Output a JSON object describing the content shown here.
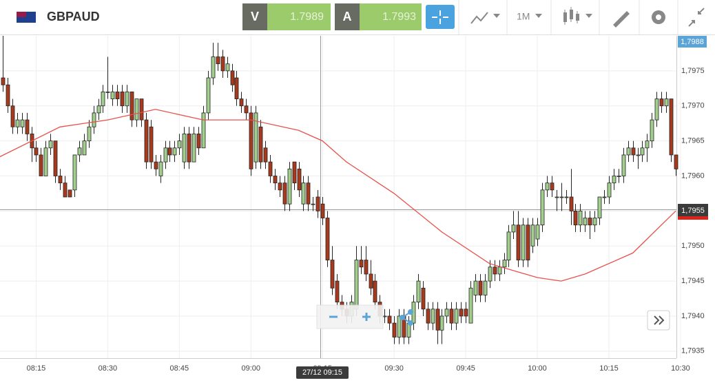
{
  "toolbar": {
    "symbol": "GBPAUD",
    "bid": {
      "label": "V",
      "price": "1.7989"
    },
    "ask": {
      "label": "A",
      "price": "1.7993"
    },
    "timeframe": "1M"
  },
  "chart_data": {
    "type": "candlestick",
    "price_badge": "1,7988",
    "crosshair_price": "1,7955",
    "crosshair_time": "27/12 09:15",
    "xlim": [
      "08:07",
      "10:29"
    ],
    "ylim": [
      1.7934,
      1.798
    ],
    "xticks": [
      "08:15",
      "08:30",
      "08:45",
      "09:00",
      "09:15",
      "09:30",
      "09:45",
      "10:00",
      "10:15",
      "10:30"
    ],
    "yticks": [
      {
        "value": 1.7935,
        "label": "1,7935"
      },
      {
        "value": 1.794,
        "label": "1,7940"
      },
      {
        "value": 1.7945,
        "label": "1,7945"
      },
      {
        "value": 1.795,
        "label": "1,7950"
      },
      {
        "value": 1.7955,
        "label": "1,7955"
      },
      {
        "value": 1.796,
        "label": "1,7960"
      },
      {
        "value": 1.7965,
        "label": "1,7965"
      },
      {
        "value": 1.797,
        "label": "1,7970"
      },
      {
        "value": 1.7975,
        "label": "1,7975"
      }
    ],
    "grid": true,
    "up_color": "#a3cf8e",
    "down_color": "#a8391c",
    "x": [
      "08:08",
      "08:09",
      "08:10",
      "08:11",
      "08:12",
      "08:13",
      "08:14",
      "08:15",
      "08:16",
      "08:17",
      "08:18",
      "08:19",
      "08:20",
      "08:21",
      "08:22",
      "08:23",
      "08:24",
      "08:25",
      "08:26",
      "08:27",
      "08:28",
      "08:29",
      "08:30",
      "08:31",
      "08:32",
      "08:33",
      "08:34",
      "08:35",
      "08:36",
      "08:37",
      "08:38",
      "08:39",
      "08:40",
      "08:41",
      "08:42",
      "08:43",
      "08:44",
      "08:45",
      "08:46",
      "08:47",
      "08:48",
      "08:49",
      "08:50",
      "08:51",
      "08:52",
      "08:53",
      "08:54",
      "08:55",
      "08:56",
      "08:57",
      "08:58",
      "08:59",
      "09:00",
      "09:01",
      "09:02",
      "09:03",
      "09:04",
      "09:05",
      "09:06",
      "09:07",
      "09:08",
      "09:09",
      "09:10",
      "09:11",
      "09:12",
      "09:13",
      "09:14",
      "09:15",
      "09:16",
      "09:17",
      "09:18",
      "09:19",
      "09:20",
      "09:21",
      "09:22",
      "09:23",
      "09:24",
      "09:25",
      "09:26",
      "09:27",
      "09:28",
      "09:29",
      "09:30",
      "09:31",
      "09:32",
      "09:33",
      "09:34",
      "09:35",
      "09:36",
      "09:37",
      "09:38",
      "09:39",
      "09:40",
      "09:41",
      "09:42",
      "09:43",
      "09:44",
      "09:45",
      "09:46",
      "09:47",
      "09:48",
      "09:49",
      "09:50",
      "09:51",
      "09:52",
      "09:53",
      "09:54",
      "09:55",
      "09:56",
      "09:57",
      "09:58",
      "09:59",
      "10:00",
      "10:01",
      "10:02",
      "10:03",
      "10:04",
      "10:05",
      "10:06",
      "10:07",
      "10:08",
      "10:09",
      "10:10",
      "10:11",
      "10:12",
      "10:13",
      "10:14",
      "10:15",
      "10:16",
      "10:17",
      "10:18",
      "10:19",
      "10:20",
      "10:21",
      "10:22",
      "10:23",
      "10:24",
      "10:25",
      "10:26",
      "10:27",
      "10:28",
      "10:29"
    ],
    "ohlc": [
      [
        1.7974,
        1.798,
        1.7972,
        1.7973
      ],
      [
        1.7973,
        1.7974,
        1.7969,
        1.797
      ],
      [
        1.797,
        1.7971,
        1.7966,
        1.7967
      ],
      [
        1.7967,
        1.7969,
        1.7966,
        1.7968
      ],
      [
        1.7967,
        1.7969,
        1.7966,
        1.7968
      ],
      [
        1.7968,
        1.7969,
        1.7965,
        1.7966
      ],
      [
        1.7966,
        1.7967,
        1.7962,
        1.7964
      ],
      [
        1.7964,
        1.7965,
        1.7962,
        1.7963
      ],
      [
        1.7963,
        1.7964,
        1.796,
        1.796
      ],
      [
        1.796,
        1.7965,
        1.796,
        1.7964
      ],
      [
        1.7964,
        1.7966,
        1.7963,
        1.7965
      ],
      [
        1.7965,
        1.7965,
        1.7959,
        1.796
      ],
      [
        1.796,
        1.7961,
        1.7958,
        1.7959
      ],
      [
        1.7959,
        1.796,
        1.7957,
        1.7957
      ],
      [
        1.7958,
        1.7958,
        1.7957,
        1.7957
      ],
      [
        1.7958,
        1.7963,
        1.7957,
        1.7963
      ],
      [
        1.7963,
        1.7965,
        1.7962,
        1.7964
      ],
      [
        1.7963,
        1.7966,
        1.7963,
        1.7965
      ],
      [
        1.7965,
        1.7968,
        1.7964,
        1.7967
      ],
      [
        1.7967,
        1.797,
        1.7966,
        1.7969
      ],
      [
        1.7969,
        1.7971,
        1.7968,
        1.797
      ],
      [
        1.797,
        1.7973,
        1.7969,
        1.7972
      ],
      [
        1.7972,
        1.7977,
        1.7971,
        1.7972
      ],
      [
        1.7971,
        1.7973,
        1.797,
        1.7972
      ],
      [
        1.7972,
        1.7973,
        1.797,
        1.7971
      ],
      [
        1.7972,
        1.7973,
        1.7969,
        1.797
      ],
      [
        1.797,
        1.7973,
        1.7969,
        1.7972
      ],
      [
        1.7972,
        1.7972,
        1.7967,
        1.7968
      ],
      [
        1.7968,
        1.7971,
        1.7967,
        1.7971
      ],
      [
        1.7971,
        1.7971,
        1.7967,
        1.7968
      ],
      [
        1.7968,
        1.7969,
        1.7961,
        1.7962
      ],
      [
        1.7967,
        1.7968,
        1.7961,
        1.7962
      ],
      [
        1.7962,
        1.7963,
        1.796,
        1.7961
      ],
      [
        1.796,
        1.7963,
        1.7959,
        1.7962
      ],
      [
        1.7962,
        1.7965,
        1.7961,
        1.7964
      ],
      [
        1.7964,
        1.7965,
        1.7962,
        1.7963
      ],
      [
        1.7963,
        1.7965,
        1.7962,
        1.7964
      ],
      [
        1.7964,
        1.7966,
        1.7963,
        1.7965
      ],
      [
        1.7962,
        1.7967,
        1.7961,
        1.7966
      ],
      [
        1.7966,
        1.7967,
        1.7961,
        1.7962
      ],
      [
        1.7962,
        1.7967,
        1.7962,
        1.7966
      ],
      [
        1.7966,
        1.7967,
        1.7963,
        1.7964
      ],
      [
        1.7964,
        1.797,
        1.7964,
        1.7969
      ],
      [
        1.7969,
        1.7975,
        1.7968,
        1.7974
      ],
      [
        1.7974,
        1.7979,
        1.7973,
        1.7977
      ],
      [
        1.7977,
        1.7979,
        1.7975,
        1.7976
      ],
      [
        1.7977,
        1.7978,
        1.7974,
        1.7975
      ],
      [
        1.7975,
        1.7977,
        1.7974,
        1.7976
      ],
      [
        1.7975,
        1.7976,
        1.7972,
        1.7973
      ],
      [
        1.7974,
        1.7975,
        1.797,
        1.7971
      ],
      [
        1.7971,
        1.7972,
        1.7969,
        1.797
      ],
      [
        1.797,
        1.7971,
        1.7968,
        1.7969
      ],
      [
        1.7969,
        1.797,
        1.796,
        1.7961
      ],
      [
        1.7962,
        1.797,
        1.7961,
        1.7969
      ],
      [
        1.7967,
        1.7968,
        1.7961,
        1.7962
      ],
      [
        1.7964,
        1.7965,
        1.7961,
        1.7962
      ],
      [
        1.7962,
        1.7963,
        1.7959,
        1.796
      ],
      [
        1.796,
        1.7961,
        1.7958,
        1.7959
      ],
      [
        1.7959,
        1.796,
        1.7957,
        1.7958
      ],
      [
        1.7959,
        1.796,
        1.7955,
        1.7956
      ],
      [
        1.7956,
        1.7962,
        1.7955,
        1.7961
      ],
      [
        1.7962,
        1.7962,
        1.7958,
        1.7959
      ],
      [
        1.7961,
        1.7962,
        1.7957,
        1.7958
      ],
      [
        1.7956,
        1.796,
        1.7955,
        1.7959
      ],
      [
        1.7959,
        1.796,
        1.7955,
        1.7956
      ],
      [
        1.7956,
        1.7957,
        1.7955,
        1.7956
      ],
      [
        1.7957,
        1.7958,
        1.7954,
        1.7955
      ],
      [
        1.7956,
        1.7957,
        1.7953,
        1.7954
      ],
      [
        1.7954,
        1.7955,
        1.7947,
        1.7948
      ],
      [
        1.7948,
        1.795,
        1.7943,
        1.7944
      ],
      [
        1.7945,
        1.7946,
        1.7941,
        1.7942
      ],
      [
        1.7942,
        1.7943,
        1.794,
        1.7941
      ],
      [
        1.7941,
        1.7942,
        1.7939,
        1.794
      ],
      [
        1.794,
        1.7943,
        1.7939,
        1.7942
      ],
      [
        1.7941,
        1.795,
        1.794,
        1.7948
      ],
      [
        1.7948,
        1.795,
        1.7946,
        1.7947
      ],
      [
        1.7948,
        1.795,
        1.7945,
        1.7946
      ],
      [
        1.7946,
        1.7948,
        1.7943,
        1.7944
      ],
      [
        1.7945,
        1.7946,
        1.7941,
        1.7942
      ],
      [
        1.7942,
        1.7943,
        1.7939,
        1.794
      ],
      [
        1.794,
        1.7941,
        1.7939,
        1.794
      ],
      [
        1.794,
        1.7941,
        1.7938,
        1.7939
      ],
      [
        1.7939,
        1.794,
        1.7936,
        1.7937
      ],
      [
        1.7937,
        1.7941,
        1.7936,
        1.794
      ],
      [
        1.794,
        1.7941,
        1.7936,
        1.7937
      ],
      [
        1.7937,
        1.794,
        1.7936,
        1.7939
      ],
      [
        1.7939,
        1.7943,
        1.7938,
        1.7942
      ],
      [
        1.7942,
        1.7946,
        1.7941,
        1.7945
      ],
      [
        1.7944,
        1.7945,
        1.794,
        1.7941
      ],
      [
        1.7941,
        1.7942,
        1.7938,
        1.7939
      ],
      [
        1.7939,
        1.7942,
        1.7938,
        1.7941
      ],
      [
        1.7941,
        1.7942,
        1.7936,
        1.7938
      ],
      [
        1.7938,
        1.7941,
        1.7936,
        1.794
      ],
      [
        1.794,
        1.7942,
        1.7939,
        1.7941
      ],
      [
        1.7941,
        1.7942,
        1.7938,
        1.7939
      ],
      [
        1.7939,
        1.7942,
        1.7938,
        1.7941
      ],
      [
        1.7941,
        1.7942,
        1.7939,
        1.794
      ],
      [
        1.7941,
        1.7942,
        1.7939,
        1.794
      ],
      [
        1.7939,
        1.7945,
        1.7939,
        1.7944
      ],
      [
        1.7943,
        1.7946,
        1.7942,
        1.7945
      ],
      [
        1.7945,
        1.7946,
        1.7942,
        1.7943
      ],
      [
        1.7943,
        1.7946,
        1.7942,
        1.7945
      ],
      [
        1.7945,
        1.7948,
        1.7944,
        1.7947
      ],
      [
        1.7947,
        1.7948,
        1.7945,
        1.7946
      ],
      [
        1.7946,
        1.7948,
        1.7945,
        1.7947
      ],
      [
        1.7947,
        1.7949,
        1.7946,
        1.7948
      ],
      [
        1.7948,
        1.7953,
        1.7947,
        1.7952
      ],
      [
        1.7952,
        1.7955,
        1.7951,
        1.7953
      ],
      [
        1.7953,
        1.7955,
        1.7947,
        1.7948
      ],
      [
        1.7948,
        1.7954,
        1.7947,
        1.7953
      ],
      [
        1.7953,
        1.7954,
        1.7947,
        1.7948
      ],
      [
        1.795,
        1.7954,
        1.7949,
        1.7953
      ],
      [
        1.7951,
        1.7954,
        1.795,
        1.7953
      ],
      [
        1.7953,
        1.7959,
        1.7952,
        1.7958
      ],
      [
        1.7958,
        1.796,
        1.7957,
        1.7959
      ],
      [
        1.7959,
        1.796,
        1.7957,
        1.7958
      ],
      [
        1.7957,
        1.7958,
        1.7955,
        1.7957
      ],
      [
        1.7957,
        1.7959,
        1.7955,
        1.7957
      ],
      [
        1.7957,
        1.7958,
        1.7956,
        1.7957
      ],
      [
        1.7957,
        1.7961,
        1.7953,
        1.7955
      ],
      [
        1.7955,
        1.7956,
        1.7952,
        1.7953
      ],
      [
        1.7953,
        1.7956,
        1.7952,
        1.7955
      ],
      [
        1.7953,
        1.7955,
        1.7952,
        1.7954
      ],
      [
        1.7954,
        1.7955,
        1.7951,
        1.7953
      ],
      [
        1.7953,
        1.7955,
        1.7952,
        1.7954
      ],
      [
        1.7954,
        1.7957,
        1.7953,
        1.7957
      ],
      [
        1.7957,
        1.7958,
        1.7956,
        1.7957
      ],
      [
        1.7957,
        1.796,
        1.7956,
        1.7959
      ],
      [
        1.7959,
        1.7961,
        1.7958,
        1.796
      ],
      [
        1.796,
        1.7961,
        1.7959,
        1.796
      ],
      [
        1.796,
        1.7964,
        1.7959,
        1.7963
      ],
      [
        1.7963,
        1.7965,
        1.7962,
        1.7964
      ],
      [
        1.7964,
        1.7965,
        1.7962,
        1.7963
      ],
      [
        1.7963,
        1.7964,
        1.7961,
        1.7963
      ],
      [
        1.7963,
        1.7965,
        1.7962,
        1.7964
      ],
      [
        1.7964,
        1.7966,
        1.7962,
        1.7965
      ],
      [
        1.7965,
        1.7969,
        1.7964,
        1.7968
      ],
      [
        1.7968,
        1.7972,
        1.7967,
        1.7971
      ],
      [
        1.7971,
        1.7972,
        1.7969,
        1.797
      ],
      [
        1.797,
        1.7972,
        1.7969,
        1.7971
      ],
      [
        1.7971,
        1.7971,
        1.7962,
        1.7963
      ],
      [
        1.7963,
        1.7963,
        1.796,
        1.7961
      ]
    ],
    "ma": {
      "color": "#e8504a",
      "x": [
        "08:07",
        "08:20",
        "08:30",
        "08:40",
        "08:50",
        "09:00",
        "09:10",
        "09:15",
        "09:20",
        "09:30",
        "09:40",
        "09:50",
        "10:00",
        "10:05",
        "10:10",
        "10:20",
        "10:29"
      ],
      "values": [
        1.79626,
        1.7967,
        1.7968,
        1.79695,
        1.7968,
        1.7968,
        1.79665,
        1.7965,
        1.7962,
        1.79575,
        1.7952,
        1.79475,
        1.79455,
        1.7945,
        1.7946,
        1.7949,
        1.7955
      ]
    }
  }
}
